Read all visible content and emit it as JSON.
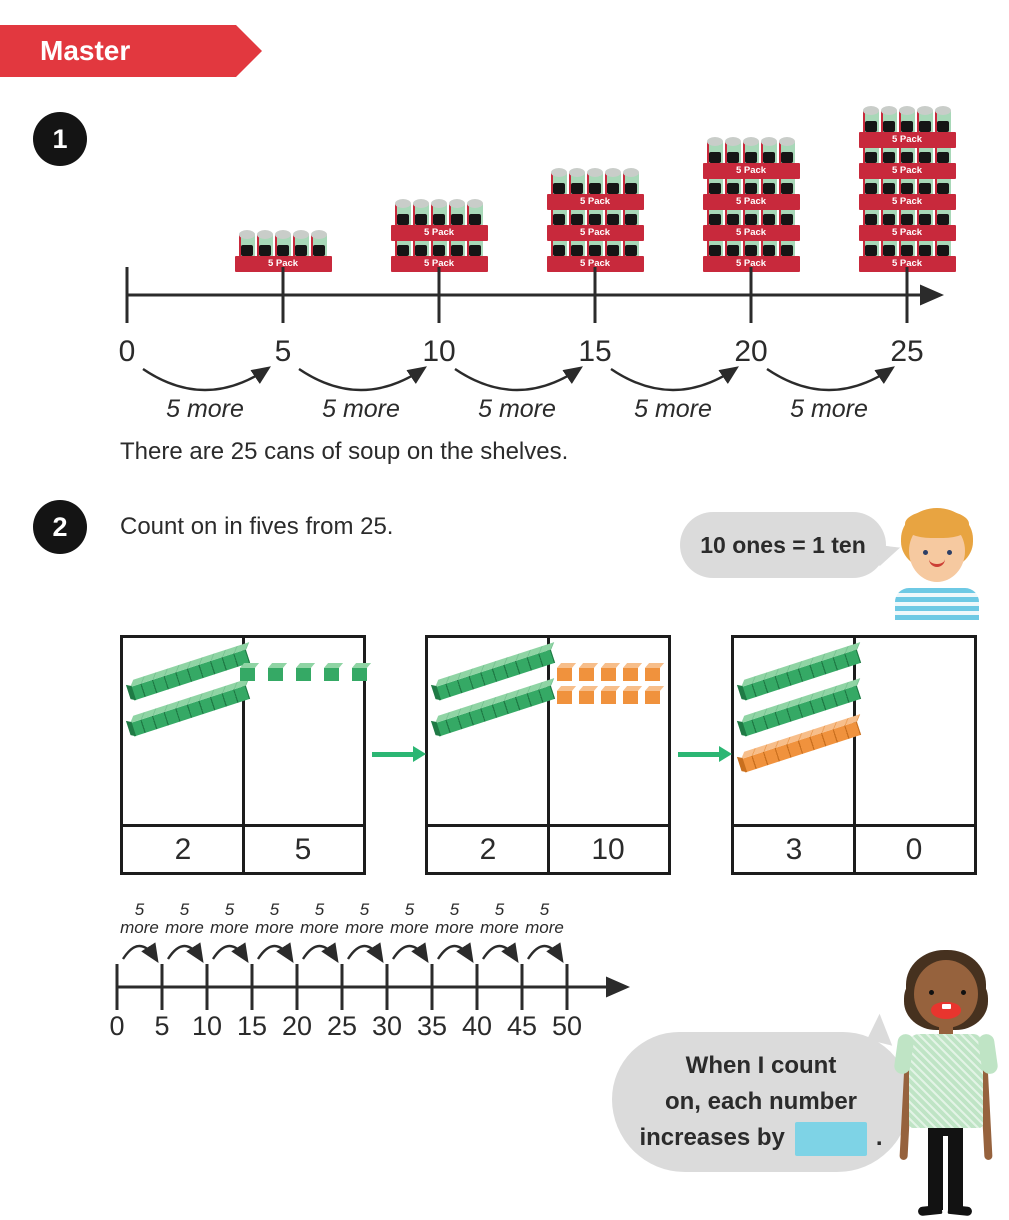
{
  "banner": {
    "label": "Master"
  },
  "colors": {
    "banner_red": "#E2383F",
    "tray_red": "#C8293C",
    "can_green": "#A8D8B8",
    "can_lid": "#C9CDC9",
    "rod_green": "#35A965",
    "rod_green_light": "#8FD4A4",
    "rod_green_dark": "#1F7A45",
    "cube_orange": "#F0923D",
    "cube_orange_light": "#F7BE8A",
    "cube_orange_dark": "#C96F1E",
    "arrow_green": "#2BB673",
    "bubble_gray": "#DBDBDB",
    "blank_blue": "#7ED3E6",
    "ink": "#2B2B2B",
    "skin_light": "#F6C9A0",
    "hair_blond": "#E8A441",
    "shirt_blue": "#6EC9E4",
    "skin_dark": "#96623D",
    "hair_dark": "#46311F",
    "mouth_red": "#E8352E",
    "shirt_green": "#BFE4C5"
  },
  "q1": {
    "number": "1",
    "pack_label": "5 Pack",
    "stacks": [
      {
        "value": 5,
        "packs": 1
      },
      {
        "value": 10,
        "packs": 2
      },
      {
        "value": 15,
        "packs": 3
      },
      {
        "value": 20,
        "packs": 4
      },
      {
        "value": 25,
        "packs": 5
      }
    ],
    "number_line": {
      "ticks": [
        0,
        5,
        10,
        15,
        20,
        25
      ],
      "arc_label": "5 more"
    },
    "caption": "There are 25 cans of soup on the shelves."
  },
  "q2": {
    "number": "2",
    "prompt": "Count on in fives from 25.",
    "bubble1": {
      "text": "10 ones = 1 ten"
    },
    "charts": [
      {
        "tens": "2",
        "ones": "5",
        "rods": {
          "green": 2,
          "orange": 0
        },
        "cubes": {
          "color": "green",
          "count": 5
        }
      },
      {
        "tens": "2",
        "ones": "10",
        "rods": {
          "green": 2,
          "orange": 0
        },
        "cubes": {
          "color": "orange",
          "count": 10
        }
      },
      {
        "tens": "3",
        "ones": "0",
        "rods": {
          "green": 2,
          "orange": 1
        },
        "cubes": {
          "color": "green",
          "count": 0
        }
      }
    ],
    "number_line": {
      "ticks": [
        0,
        5,
        10,
        15,
        20,
        25,
        30,
        35,
        40,
        45,
        50
      ],
      "arc_label_top": "5",
      "arc_label_bottom": "more"
    },
    "bubble2": {
      "line1": "When I count",
      "line2": "on, each number",
      "line3_prefix": "increases by",
      "line3_suffix": "."
    }
  }
}
